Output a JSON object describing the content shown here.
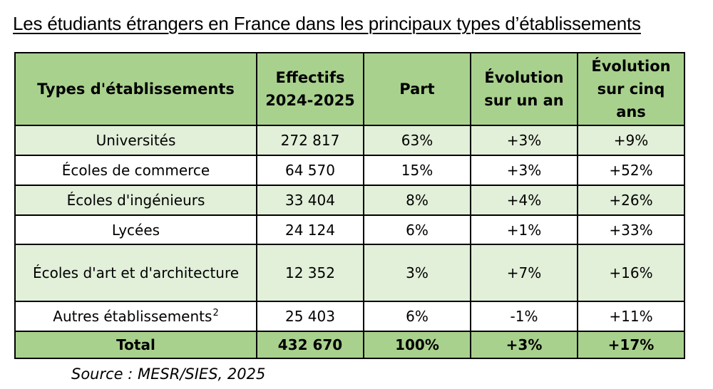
{
  "title": "Les étudiants étrangers en France dans les principaux types d’établissements",
  "table": {
    "headers": {
      "type": "Types d'établissements",
      "effectifs": "Effectifs 2024-2025",
      "part": "Part",
      "evolution_un_an": "Évolution sur un an",
      "evolution_cinq_ans": "Évolution sur cinq ans"
    },
    "rows": [
      {
        "type": "Universités",
        "effectifs": "272 817",
        "part": "63%",
        "evolution_un_an": "+3%",
        "evolution_cinq_ans": "+9%"
      },
      {
        "type": "Écoles de commerce",
        "effectifs": "64 570",
        "part": "15%",
        "evolution_un_an": "+3%",
        "evolution_cinq_ans": "+52%"
      },
      {
        "type": "Écoles d'ingénieurs",
        "effectifs": "33 404",
        "part": "8%",
        "evolution_un_an": "+4%",
        "evolution_cinq_ans": "+26%"
      },
      {
        "type": "Lycées",
        "effectifs": "24 124",
        "part": "6%",
        "evolution_un_an": "+1%",
        "evolution_cinq_ans": "+33%"
      },
      {
        "type": "Écoles d'art et d'architecture",
        "effectifs": "12 352",
        "part": "3%",
        "evolution_un_an": "+7%",
        "evolution_cinq_ans": "+16%"
      },
      {
        "type": "Autres établissements",
        "footnote": "2",
        "effectifs": "25 403",
        "part": "6%",
        "evolution_un_an": "-1%",
        "evolution_cinq_ans": "+11%"
      }
    ],
    "total": {
      "type": "Total",
      "effectifs": "432 670",
      "part": "100%",
      "evolution_un_an": "+3%",
      "evolution_cinq_ans": "+17%"
    }
  },
  "source": "Source : MESR/SIES, 2025",
  "colors": {
    "header_fill": "#a9d18e",
    "light_row_fill": "#e2efd9",
    "border": "#000000"
  }
}
